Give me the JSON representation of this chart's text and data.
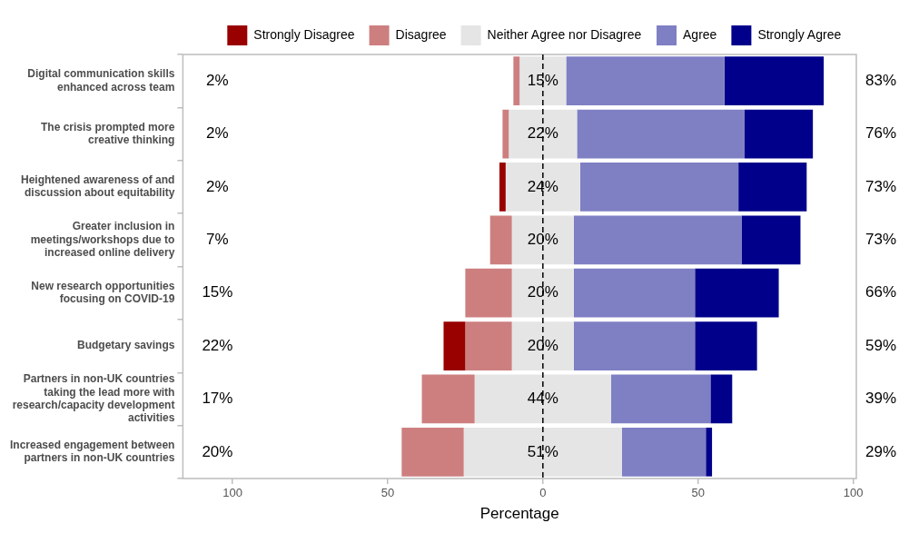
{
  "chart_data": {
    "type": "bar",
    "orientation": "horizontal",
    "xlabel": "Percentage",
    "legend": "top",
    "grid": false,
    "categories": [
      "Digital communication skills enhanced across team",
      "The crisis prompted more creative thinking",
      "Heightened awareness of and discussion about equitability",
      "Greater inclusion in meetings/workshops due to increased online delivery",
      "New research opportunities focusing on COVID-19",
      "Budgetary savings",
      "Partners in non-UK countries taking the lead more with research/capacity development activities",
      "Increased engagement between partners in non-UK countries"
    ],
    "xlim": [
      -116,
      101
    ],
    "xticks": [
      {
        "value": -100,
        "label": "100"
      },
      {
        "value": -50,
        "label": "50"
      },
      0,
      50,
      100
    ],
    "ref_lines": [
      {
        "axis": "x",
        "value": 0,
        "line_style": "dashed",
        "color": "#000000"
      }
    ],
    "series": [
      {
        "name": "Strongly Disagree",
        "color": "#990000",
        "values": [
          null,
          null,
          2,
          null,
          null,
          7,
          null,
          null
        ],
        "base": [
          null,
          null,
          -14,
          null,
          null,
          -32,
          null,
          null
        ]
      },
      {
        "name": "Disagree",
        "color": "#cd7f7f",
        "values": [
          2,
          2,
          null,
          7,
          15,
          15,
          17,
          20
        ],
        "base": [
          -9.5,
          -13,
          null,
          -17,
          -25,
          -25,
          -39,
          -45.5
        ]
      },
      {
        "name": "Neither Agree nor Disagree",
        "color": "#e5e5e5",
        "values": [
          15,
          22,
          24,
          20,
          20,
          20,
          44,
          51
        ],
        "base": [
          -7.5,
          -11,
          -12,
          -10,
          -10,
          -10,
          -22,
          -25.5
        ],
        "value_labels": [
          "15%",
          "22%",
          "24%",
          "20%",
          "20%",
          "20%",
          "44%",
          "51%"
        ]
      },
      {
        "name": "Agree",
        "color": "#7f7fc4",
        "values": [
          51,
          54,
          51,
          54,
          39,
          39,
          32,
          27
        ],
        "base": [
          7.5,
          11,
          12,
          10,
          10,
          10,
          22,
          25.5
        ]
      },
      {
        "name": "Strongly Agree",
        "color": "#00008b",
        "values": [
          32,
          22,
          22,
          19,
          27,
          20,
          7,
          2
        ],
        "base": [
          58.5,
          65,
          63,
          64,
          49,
          49,
          54,
          52.5
        ]
      }
    ],
    "annotations": [
      "2%",
      "2%",
      "2%",
      "7%",
      "15%",
      "22%",
      "17%",
      "20%",
      "83%",
      "76%",
      "73%",
      "73%",
      "66%",
      "59%",
      "39%",
      "29%"
    ]
  }
}
